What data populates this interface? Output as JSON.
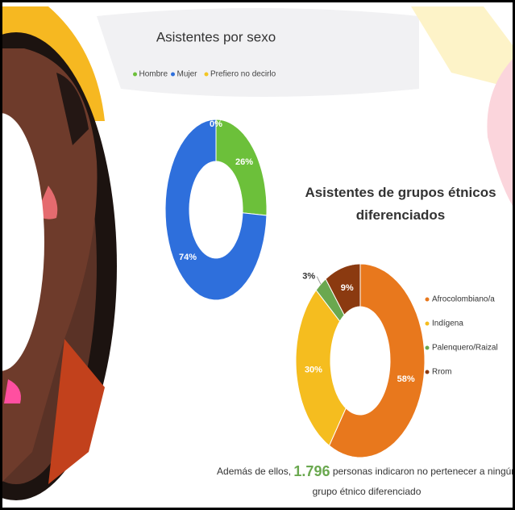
{
  "chart_data": [
    {
      "type": "donut",
      "title": "Asistentes por sexo",
      "legend": "top",
      "categories": [
        "Hombre",
        "Mujer",
        "Prefiero no decirlo"
      ],
      "values": [
        26,
        74,
        0
      ],
      "value_labels": [
        "26%",
        "74%",
        "0%"
      ],
      "colors": [
        "#6cc03a",
        "#2e6fdc",
        "#f3c623"
      ]
    },
    {
      "type": "donut",
      "title": "Asistentes de grupos étnicos diferenciados",
      "legend": "right",
      "categories": [
        "Afrocolombiano/a",
        "Indígena",
        "Palenquero/Raizal",
        "Rrom"
      ],
      "values": [
        58,
        30,
        3,
        9
      ],
      "value_labels": [
        "58%",
        "30%",
        "3%",
        "9%"
      ],
      "colors": [
        "#e8781d",
        "#f5bd1f",
        "#6aa84f",
        "#8b3a10"
      ]
    }
  ],
  "footer": {
    "before": "Además de ellos,",
    "number": "1.796",
    "after_line1": "personas indicaron no pertenecer a ningún",
    "line2": "grupo étnico diferenciado"
  }
}
